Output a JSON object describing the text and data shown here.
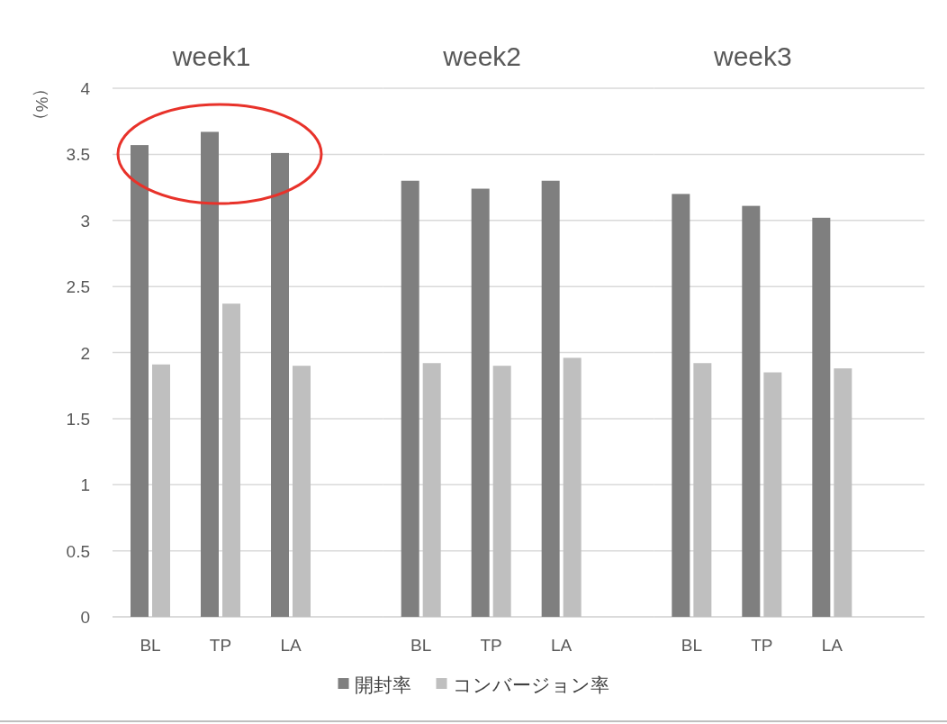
{
  "chart_data": [
    {
      "type": "bar",
      "title": "week1",
      "ylabel": "（%）",
      "categories": [
        "BL",
        "TP",
        "LA"
      ],
      "ylim": [
        0,
        4
      ],
      "yticks": [
        0,
        0.5,
        1,
        1.5,
        2,
        2.5,
        3,
        3.5,
        4
      ],
      "grid": "y",
      "series": [
        {
          "color": "#7f7f7f",
          "values": [
            3.57,
            3.67,
            3.51
          ]
        },
        {
          "color": "#bfbfbf",
          "values": [
            1.91,
            2.37,
            1.9
          ]
        }
      ]
    },
    {
      "type": "bar",
      "title": "week2",
      "categories": [
        "BL",
        "TP",
        "LA"
      ],
      "ylim": [
        0,
        4
      ],
      "yticks": [
        0,
        0.5,
        1,
        1.5,
        2,
        2.5,
        3,
        3.5,
        4
      ],
      "grid": "y",
      "tick_labels": "x",
      "legend": "bottom",
      "series": [
        {
          "name": "開封率",
          "color": "#7f7f7f",
          "values": [
            3.3,
            3.24,
            3.3
          ]
        },
        {
          "name": "コンバージョン率",
          "color": "#bfbfbf",
          "values": [
            1.92,
            1.9,
            1.96
          ]
        }
      ]
    },
    {
      "type": "bar",
      "title": "week3",
      "categories": [
        "BL",
        "TP",
        "LA"
      ],
      "ylim": [
        0,
        4
      ],
      "yticks": [
        0,
        0.5,
        1,
        1.5,
        2,
        2.5,
        3,
        3.5,
        4
      ],
      "grid": "y",
      "tick_labels": "x",
      "series": [
        {
          "color": "#7f7f7f",
          "values": [
            3.2,
            3.11,
            3.02
          ]
        },
        {
          "color": "#bfbfbf",
          "values": [
            1.92,
            1.85,
            1.88
          ]
        }
      ]
    }
  ]
}
